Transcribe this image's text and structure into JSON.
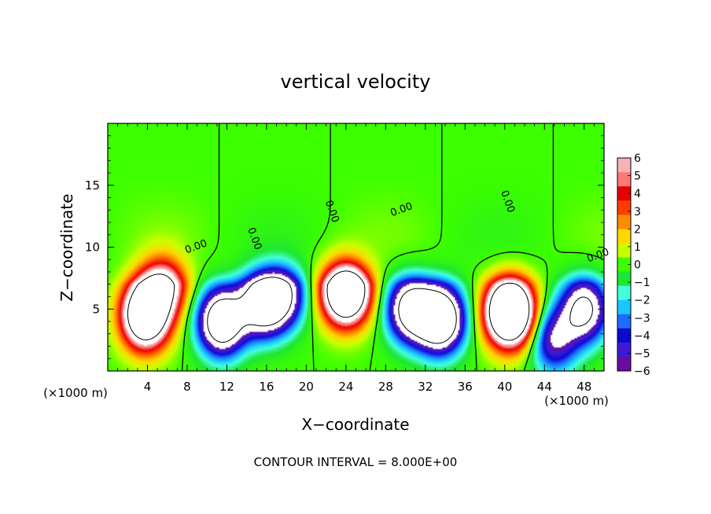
{
  "chart_data": {
    "type": "heatmap",
    "title": "vertical velocity",
    "xlabel": "X−coordinate",
    "ylabel": "Z−coordinate",
    "x_unit_left": "(×1000 m)",
    "x_unit_right": "(×1000 m)",
    "footer": "CONTOUR INTERVAL = 8.000E+00",
    "xlim": [
      0,
      50
    ],
    "ylim": [
      0,
      20
    ],
    "x_ticks": [
      4,
      8,
      12,
      16,
      20,
      24,
      28,
      32,
      36,
      40,
      44,
      48
    ],
    "x_tick_labels": [
      "4",
      "8",
      "12",
      "16",
      "20",
      "24",
      "28",
      "32",
      "36",
      "40",
      "44",
      "48"
    ],
    "y_ticks": [
      5,
      10,
      15
    ],
    "y_tick_labels": [
      "5",
      "10",
      "15"
    ],
    "colorbar": {
      "min": -6,
      "max": 6,
      "tick_values": [
        6,
        5,
        4,
        3,
        2,
        1,
        0,
        -1,
        -2,
        -3,
        -4,
        -5,
        -6
      ],
      "tick_labels": [
        "6",
        "5",
        "4",
        "3",
        "2",
        "1",
        "0",
        "−1",
        "−2",
        "−3",
        "−4",
        "−5",
        "−6"
      ],
      "colors": [
        "#6a0d9e",
        "#3d1ad6",
        "#0a0ad2",
        "#1e6cff",
        "#19c8ff",
        "#45ffdc",
        "#1ee632",
        "#3cff00",
        "#c8ff00",
        "#ffd800",
        "#ff8c00",
        "#ff3c00",
        "#e60000",
        "#ff7878",
        "#f5b5b5"
      ]
    },
    "contour_labels": [
      "0.00",
      "0.00",
      "0.00",
      "0.00",
      "0.00",
      "0.00"
    ],
    "cells": [
      {
        "x": 3.8,
        "z": 4.5,
        "value": 14
      },
      {
        "x": 5.5,
        "z": 7.2,
        "value": 9
      },
      {
        "x": 11.5,
        "z": 4.0,
        "value": -12
      },
      {
        "x": 15.5,
        "z": 5.5,
        "value": -10
      },
      {
        "x": 17.5,
        "z": 6.2,
        "value": -8
      },
      {
        "x": 24.0,
        "z": 6.5,
        "value": 16
      },
      {
        "x": 30.5,
        "z": 5.0,
        "value": -10
      },
      {
        "x": 33.5,
        "z": 4.2,
        "value": -13
      },
      {
        "x": 40.5,
        "z": 4.8,
        "value": 18
      },
      {
        "x": 45.0,
        "z": 2.5,
        "value": -6
      },
      {
        "x": 48.0,
        "z": 5.0,
        "value": -9
      }
    ]
  }
}
